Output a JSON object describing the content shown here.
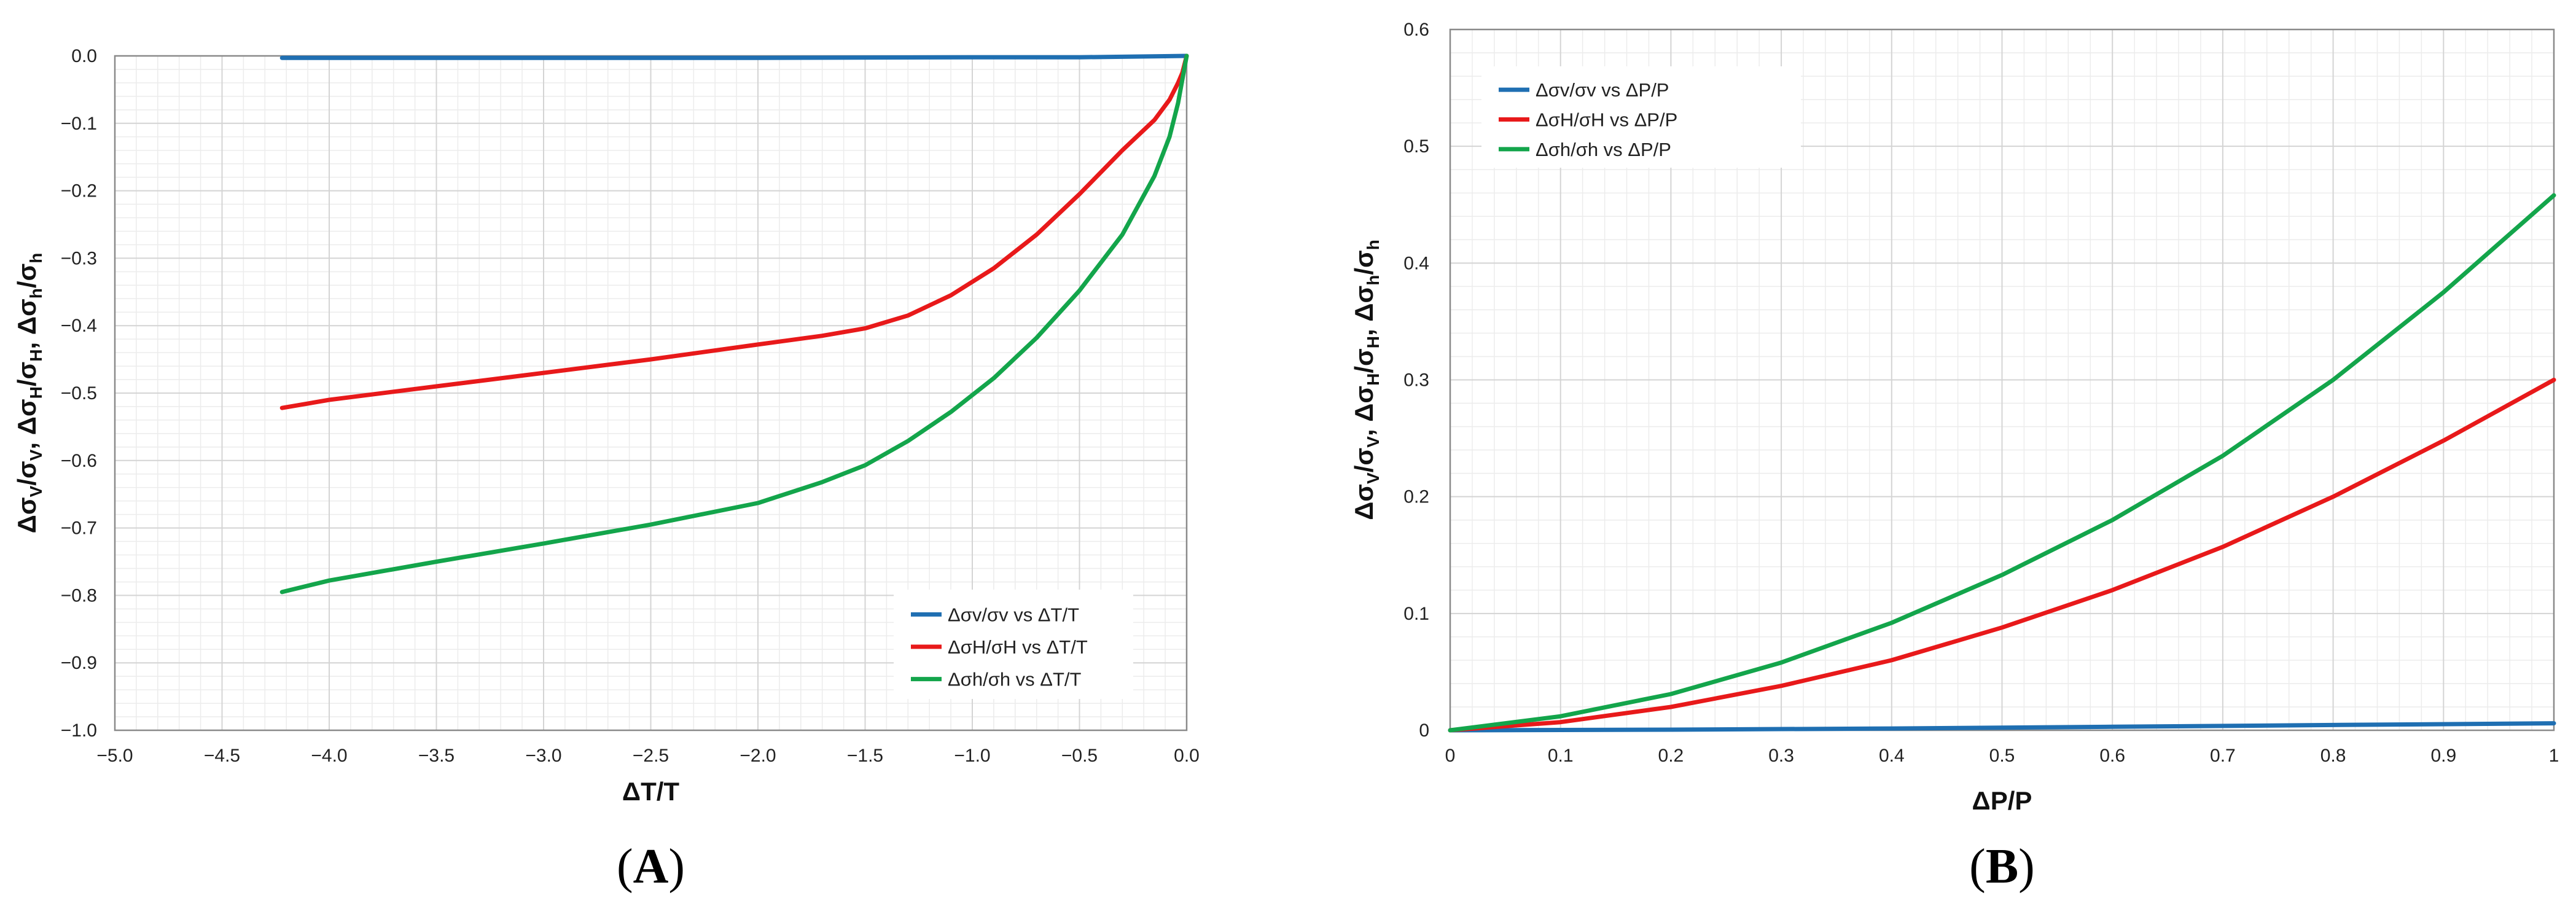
{
  "chart_data": [
    {
      "type": "line",
      "panel_label": "A",
      "xlabel": "ΔT/T",
      "ylabel": "Δσ_V/σ_V, Δσ_H/σ_H, Δσ_h/σ_h",
      "ylabel_parts": [
        "Δσ",
        "V",
        "/σ",
        "V",
        ", Δσ",
        "H",
        "/σ",
        "H",
        ", Δσ",
        "h",
        "/σ",
        "h"
      ],
      "xlim": [
        -5.0,
        0.0
      ],
      "ylim": [
        -1.0,
        0.0
      ],
      "xticks": [
        -5.0,
        -4.5,
        -4.0,
        -3.5,
        -3.0,
        -2.5,
        -2.0,
        -1.5,
        -1.0,
        -0.5,
        0.0
      ],
      "xtick_labels": [
        "−5.0",
        "−4.5",
        "−4.0",
        "−3.5",
        "−3.0",
        "−2.5",
        "−2.0",
        "−1.5",
        "−1.0",
        "−0.5",
        "0.0"
      ],
      "yticks": [
        0.0,
        -0.1,
        -0.2,
        -0.3,
        -0.4,
        -0.5,
        -0.6,
        -0.7,
        -0.8,
        -0.9,
        -1.0
      ],
      "ytick_labels": [
        "0.0",
        "−0.1",
        "−0.2",
        "−0.3",
        "−0.4",
        "−0.5",
        "−0.6",
        "−0.7",
        "−0.8",
        "−0.9",
        "−1.0"
      ],
      "minor_grid_x_step": 0.1,
      "minor_grid_y_step": 0.02,
      "grid": true,
      "legend_position": "bottom-right",
      "series": [
        {
          "name": "Δσv/σv vs ΔT/T",
          "color": "#1f6fb2",
          "x": [
            -4.22,
            -3.0,
            -2.0,
            -1.0,
            -0.5,
            0.0
          ],
          "y": [
            -0.003,
            -0.003,
            -0.003,
            -0.002,
            -0.002,
            0.0
          ]
        },
        {
          "name": "ΔσH/σH vs ΔT/T",
          "color": "#e8191a",
          "x": [
            -4.22,
            -4.0,
            -3.5,
            -3.0,
            -2.5,
            -2.0,
            -1.7,
            -1.5,
            -1.3,
            -1.1,
            -0.9,
            -0.7,
            -0.5,
            -0.3,
            -0.15,
            -0.08,
            -0.04,
            -0.02,
            0.0
          ],
          "y": [
            -0.522,
            -0.51,
            -0.49,
            -0.47,
            -0.45,
            -0.428,
            -0.415,
            -0.404,
            -0.385,
            -0.355,
            -0.315,
            -0.265,
            -0.205,
            -0.14,
            -0.095,
            -0.065,
            -0.04,
            -0.025,
            0.0
          ]
        },
        {
          "name": "Δσh/σh vs ΔT/T",
          "color": "#13a54b",
          "x": [
            -4.22,
            -4.0,
            -3.5,
            -3.0,
            -2.5,
            -2.0,
            -1.7,
            -1.5,
            -1.3,
            -1.1,
            -0.9,
            -0.7,
            -0.5,
            -0.3,
            -0.15,
            -0.08,
            -0.04,
            0.0
          ],
          "y": [
            -0.795,
            -0.778,
            -0.75,
            -0.723,
            -0.695,
            -0.663,
            -0.632,
            -0.607,
            -0.571,
            -0.528,
            -0.478,
            -0.418,
            -0.348,
            -0.265,
            -0.178,
            -0.12,
            -0.07,
            0.0
          ]
        }
      ]
    },
    {
      "type": "line",
      "panel_label": "B",
      "xlabel": "ΔP/P",
      "ylabel": "Δσ_V/σ_V, Δσ_H/σ_H, Δσ_h/σ_h",
      "ylabel_parts": [
        "Δσ",
        "V",
        "/σ",
        "V",
        ", Δσ",
        "H",
        "/σ",
        "H",
        ", Δσ",
        "h",
        "/σ",
        "h"
      ],
      "xlim": [
        0,
        1
      ],
      "ylim": [
        0,
        0.6
      ],
      "xticks": [
        0,
        0.1,
        0.2,
        0.3,
        0.4,
        0.5,
        0.6,
        0.7,
        0.8,
        0.9,
        1
      ],
      "xtick_labels": [
        "0",
        "0.1",
        "0.2",
        "0.3",
        "0.4",
        "0.5",
        "0.6",
        "0.7",
        "0.8",
        "0.9",
        "1"
      ],
      "yticks": [
        0,
        0.1,
        0.2,
        0.3,
        0.4,
        0.5,
        0.6
      ],
      "ytick_labels": [
        "0",
        "0.1",
        "0.2",
        "0.3",
        "0.4",
        "0.5",
        "0.6"
      ],
      "minor_grid_x_step": 0.02,
      "minor_grid_y_step": 0.02,
      "grid": true,
      "legend_position": "top-left",
      "series": [
        {
          "name": "Δσv/σv vs ΔP/P",
          "color": "#1f6fb2",
          "x": [
            0,
            0.2,
            0.4,
            0.6,
            0.8,
            1.0
          ],
          "y": [
            0,
            0.0005,
            0.0015,
            0.003,
            0.0045,
            0.006
          ]
        },
        {
          "name": "ΔσH/σH vs ΔP/P",
          "color": "#e8191a",
          "x": [
            0,
            0.1,
            0.2,
            0.3,
            0.4,
            0.5,
            0.6,
            0.7,
            0.8,
            0.9,
            1.0
          ],
          "y": [
            0,
            0.007,
            0.02,
            0.038,
            0.06,
            0.088,
            0.12,
            0.157,
            0.2,
            0.248,
            0.3
          ]
        },
        {
          "name": "Δσh/σh vs ΔP/P",
          "color": "#13a54b",
          "x": [
            0,
            0.1,
            0.2,
            0.3,
            0.4,
            0.5,
            0.6,
            0.7,
            0.8,
            0.9,
            1.0
          ],
          "y": [
            0,
            0.012,
            0.031,
            0.058,
            0.092,
            0.133,
            0.18,
            0.235,
            0.3,
            0.375,
            0.458
          ]
        }
      ]
    }
  ]
}
